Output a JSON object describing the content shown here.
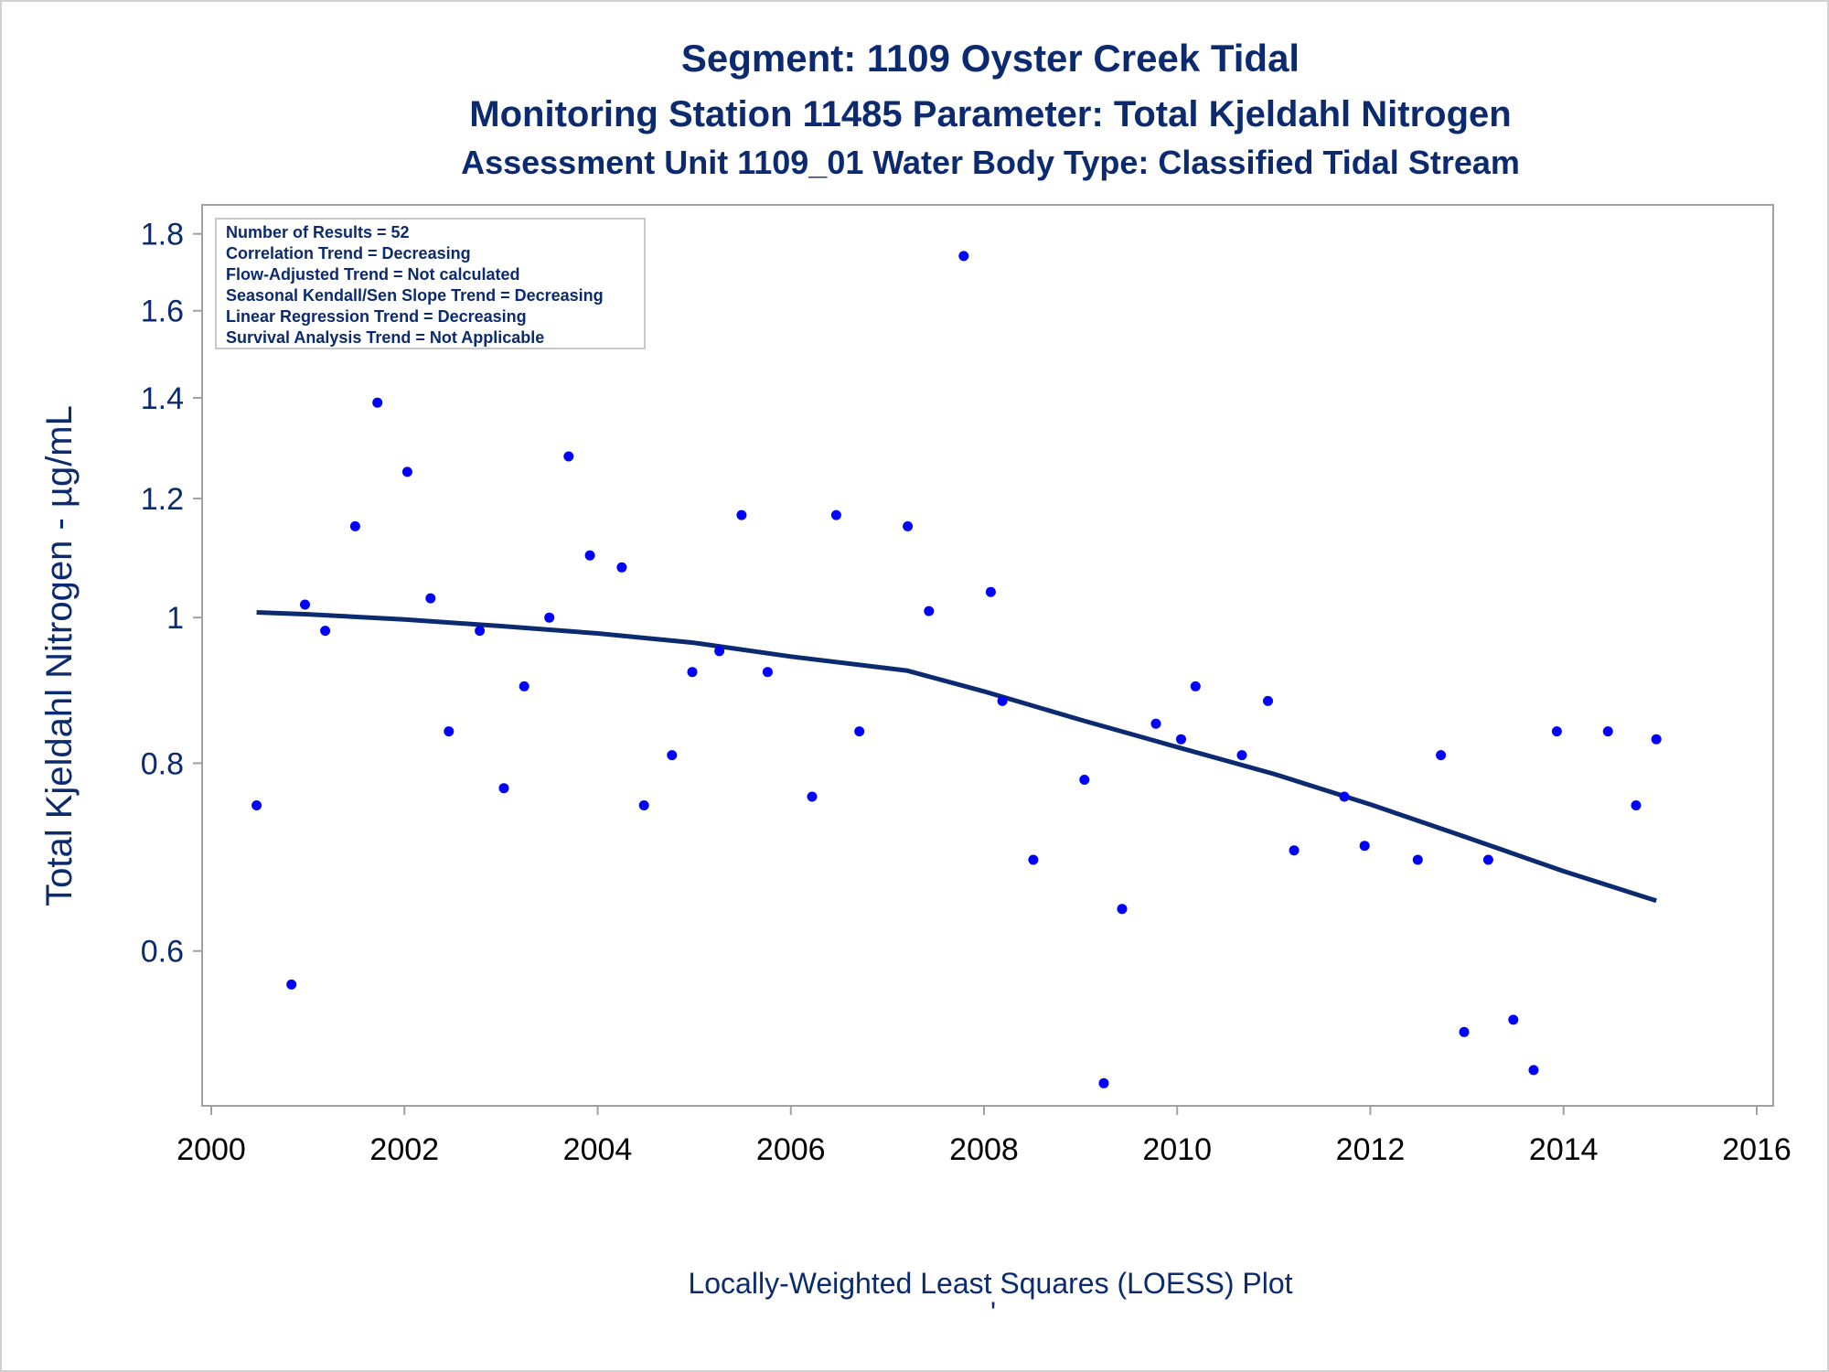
{
  "titles": {
    "line1": "Segment: 1109  Oyster Creek Tidal",
    "line2": "Monitoring Station 11485 Parameter: Total Kjeldahl Nitrogen",
    "line3": "Assessment Unit 1109_01   Water Body Type: Classified Tidal Stream"
  },
  "stats_box": {
    "lines": [
      "Number of Results = 52",
      "Correlation Trend = Decreasing",
      "Flow-Adjusted Trend = Not calculated",
      "Seasonal Kendall/Sen Slope Trend = Decreasing",
      "Linear Regression Trend = Decreasing",
      "Survival Analysis Trend = Not Applicable"
    ]
  },
  "footer": {
    "plot_label": "Locally-Weighted Least Squares (LOESS) Plot",
    "tick_mark": "'"
  },
  "colors": {
    "text": "#0b2a6f",
    "points": "#0000ff",
    "loess_line": "#0b2a6f",
    "frame": "#a0a0a0"
  },
  "chart_data": {
    "type": "scatter",
    "title": "Segment: 1109  Oyster Creek Tidal",
    "xlabel": "",
    "ylabel": "Total Kjeldahl Nitrogen -  µg/mL",
    "y_scale": "log",
    "xlim": [
      2000,
      2016
    ],
    "ylim": [
      0.48,
      1.84
    ],
    "x_ticks": [
      2000,
      2002,
      2004,
      2006,
      2008,
      2010,
      2012,
      2014,
      2016
    ],
    "y_ticks": [
      0.6,
      0.8,
      1,
      1.2,
      1.4,
      1.6,
      1.8
    ],
    "y_tick_labels": [
      "0.6",
      "0.8",
      "1",
      "1.2",
      "1.4",
      "1.6",
      "1.8"
    ],
    "grid": false,
    "legend_position": "top-left",
    "series": [
      {
        "type": "scatter",
        "points": [
          [
            2000.47,
            0.75
          ],
          [
            2000.83,
            0.57
          ],
          [
            2000.97,
            1.02
          ],
          [
            2001.18,
            0.98
          ],
          [
            2001.49,
            1.15
          ],
          [
            2001.72,
            1.39
          ],
          [
            2002.03,
            1.25
          ],
          [
            2002.27,
            1.03
          ],
          [
            2002.46,
            0.84
          ],
          [
            2002.78,
            0.98
          ],
          [
            2003.03,
            0.77
          ],
          [
            2003.24,
            0.9
          ],
          [
            2003.5,
            1.0
          ],
          [
            2003.7,
            1.28
          ],
          [
            2003.92,
            1.1
          ],
          [
            2004.25,
            1.08
          ],
          [
            2004.48,
            0.75
          ],
          [
            2004.77,
            0.81
          ],
          [
            2004.98,
            0.92
          ],
          [
            2005.26,
            0.95
          ],
          [
            2005.49,
            1.17
          ],
          [
            2005.76,
            0.92
          ],
          [
            2006.22,
            0.76
          ],
          [
            2006.47,
            1.17
          ],
          [
            2006.71,
            0.84
          ],
          [
            2007.21,
            1.15
          ],
          [
            2007.43,
            1.01
          ],
          [
            2007.79,
            1.74
          ],
          [
            2008.07,
            1.04
          ],
          [
            2008.19,
            0.88
          ],
          [
            2008.51,
            0.69
          ],
          [
            2009.04,
            0.78
          ],
          [
            2009.24,
            0.49
          ],
          [
            2009.43,
            0.64
          ],
          [
            2009.78,
            0.85
          ],
          [
            2010.04,
            0.83
          ],
          [
            2010.19,
            0.9
          ],
          [
            2010.67,
            0.81
          ],
          [
            2010.94,
            0.88
          ],
          [
            2011.21,
            0.7
          ],
          [
            2011.73,
            0.76
          ],
          [
            2011.94,
            0.705
          ],
          [
            2012.49,
            0.69
          ],
          [
            2012.73,
            0.81
          ],
          [
            2012.97,
            0.53
          ],
          [
            2013.22,
            0.69
          ],
          [
            2013.48,
            0.54
          ],
          [
            2013.69,
            0.5
          ],
          [
            2013.93,
            0.84
          ],
          [
            2014.46,
            0.84
          ],
          [
            2014.75,
            0.75
          ],
          [
            2014.96,
            0.83
          ]
        ]
      },
      {
        "name": "LOESS",
        "type": "line",
        "points": [
          [
            2000.47,
            1.008
          ],
          [
            2001.0,
            1.005
          ],
          [
            2002.0,
            0.997
          ],
          [
            2003.0,
            0.987
          ],
          [
            2004.0,
            0.976
          ],
          [
            2005.0,
            0.962
          ],
          [
            2006.0,
            0.942
          ],
          [
            2007.2,
            0.922
          ],
          [
            2008.0,
            0.893
          ],
          [
            2009.0,
            0.855
          ],
          [
            2010.0,
            0.82
          ],
          [
            2011.0,
            0.787
          ],
          [
            2012.0,
            0.751
          ],
          [
            2013.0,
            0.714
          ],
          [
            2014.0,
            0.678
          ],
          [
            2014.96,
            0.648
          ]
        ]
      }
    ]
  }
}
